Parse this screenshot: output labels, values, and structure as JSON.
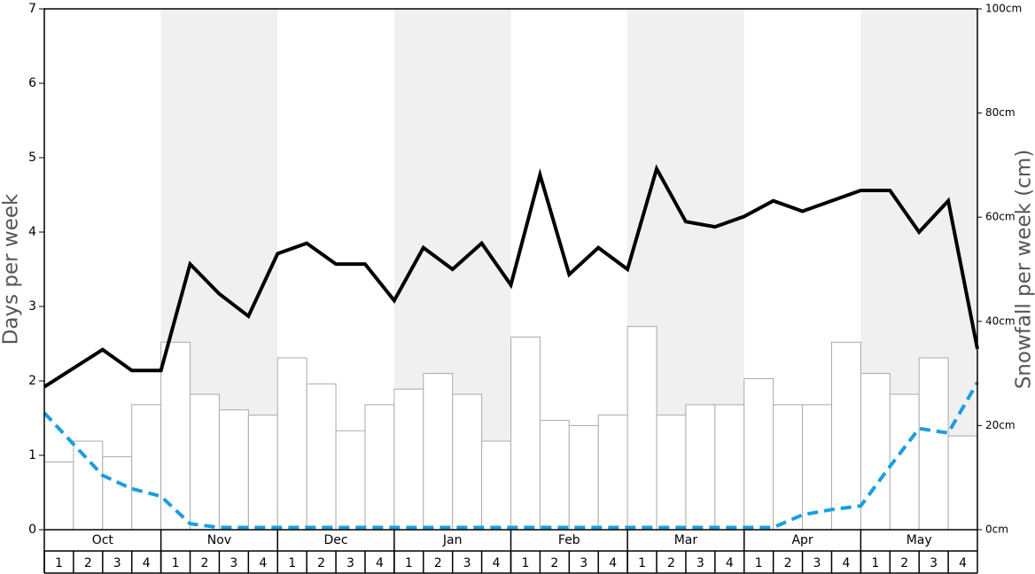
{
  "chart_data": {
    "type": "combo",
    "y_label": "Days per week",
    "y2_label": "Snowfall per week (cm)",
    "months": [
      "Oct",
      "Nov",
      "Dec",
      "Jan",
      "Feb",
      "Mar",
      "Apr",
      "May"
    ],
    "weeks": [
      1,
      2,
      3,
      4,
      1,
      2,
      3,
      4,
      1,
      2,
      3,
      4,
      1,
      2,
      3,
      4,
      1,
      2,
      3,
      4,
      1,
      2,
      3,
      4,
      1,
      2,
      3,
      4,
      1,
      2,
      3,
      4
    ],
    "shaded_months": [
      false,
      true,
      false,
      true,
      false,
      true,
      false,
      true
    ],
    "shade_color": "#f0f0f0",
    "ylim": [
      0,
      7
    ],
    "yticks": [
      0,
      1,
      2,
      3,
      4,
      5,
      6,
      7
    ],
    "y2lim": [
      0,
      100
    ],
    "y2ticks": [
      {
        "value": 0,
        "label": "0cm"
      },
      {
        "value": 20,
        "label": "20cm"
      },
      {
        "value": 40,
        "label": "40cm"
      },
      {
        "value": 60,
        "label": "60cm"
      },
      {
        "value": 80,
        "label": "80cm"
      },
      {
        "value": 100,
        "label": "100cm"
      }
    ],
    "bars": {
      "axis": "y2",
      "color": "#ffffff",
      "edge_color": "#aaaaaa",
      "values": [
        13,
        17,
        14,
        24,
        36,
        26,
        23,
        22,
        33,
        28,
        19,
        24,
        27,
        30,
        26,
        17,
        37,
        21,
        20,
        22,
        39,
        22,
        24,
        24,
        29,
        24,
        24,
        36,
        30,
        26,
        33,
        18
      ]
    },
    "xlim": [
      0,
      32
    ],
    "x": [
      0,
      1,
      2,
      3,
      4,
      5,
      6,
      7,
      8,
      9,
      10,
      11,
      12,
      13,
      14,
      15,
      16,
      17,
      18,
      19,
      20,
      21,
      22,
      23,
      24,
      25,
      26,
      27,
      28,
      29,
      30,
      31,
      32
    ],
    "series": [
      {
        "color": "#000000",
        "dashed": false,
        "values": [
          1.92,
          2.17,
          2.42,
          2.14,
          2.14,
          3.57,
          3.17,
          2.87,
          3.71,
          3.85,
          3.57,
          3.57,
          3.08,
          3.79,
          3.5,
          3.85,
          3.29,
          4.77,
          3.43,
          3.79,
          3.5,
          4.85,
          4.14,
          4.07,
          4.21,
          4.42,
          4.28,
          4.42,
          4.56,
          4.56,
          4.0,
          4.42,
          2.43
        ]
      },
      {
        "color": "#1a9ee0",
        "dashed": true,
        "values": [
          1.57,
          1.15,
          0.73,
          0.55,
          0.45,
          0.08,
          0.03,
          0.03,
          0.03,
          0.03,
          0.03,
          0.03,
          0.03,
          0.03,
          0.03,
          0.03,
          0.03,
          0.03,
          0.03,
          0.03,
          0.03,
          0.03,
          0.03,
          0.03,
          0.03,
          0.03,
          0.2,
          0.27,
          0.32,
          0.85,
          1.36,
          1.3,
          1.98
        ]
      }
    ]
  }
}
